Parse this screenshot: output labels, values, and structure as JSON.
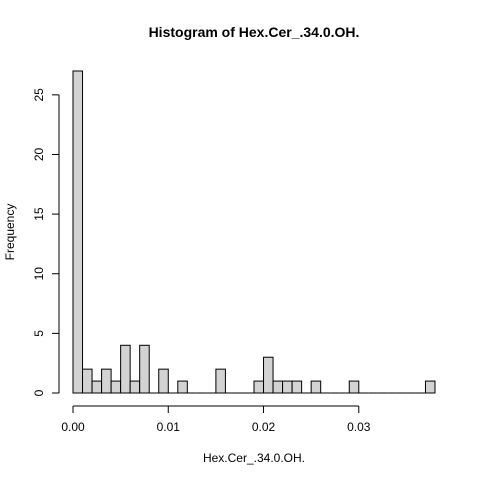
{
  "chart_data": {
    "type": "bar",
    "title": "Histogram of Hex.Cer_.34.0.OH.",
    "xlabel": "Hex.Cer_.34.0.OH.",
    "ylabel": "Frequency",
    "bin_start": 0.0,
    "bin_width": 0.001,
    "counts": [
      27,
      2,
      1,
      2,
      1,
      4,
      1,
      4,
      0,
      2,
      0,
      1,
      0,
      0,
      0,
      2,
      0,
      0,
      0,
      1,
      3,
      1,
      1,
      1,
      0,
      1,
      0,
      0,
      0,
      1,
      0,
      0,
      0,
      0,
      0,
      0,
      0,
      1
    ],
    "xlim": [
      0.0,
      0.038
    ],
    "ylim": [
      0,
      27
    ],
    "x_ticks": [
      0.0,
      0.01,
      0.02,
      0.03
    ],
    "x_tick_labels": [
      "0.00",
      "0.01",
      "0.02",
      "0.03"
    ],
    "y_ticks": [
      0,
      5,
      10,
      15,
      20,
      25
    ],
    "y_tick_labels": [
      "0",
      "5",
      "10",
      "15",
      "20",
      "25"
    ]
  }
}
